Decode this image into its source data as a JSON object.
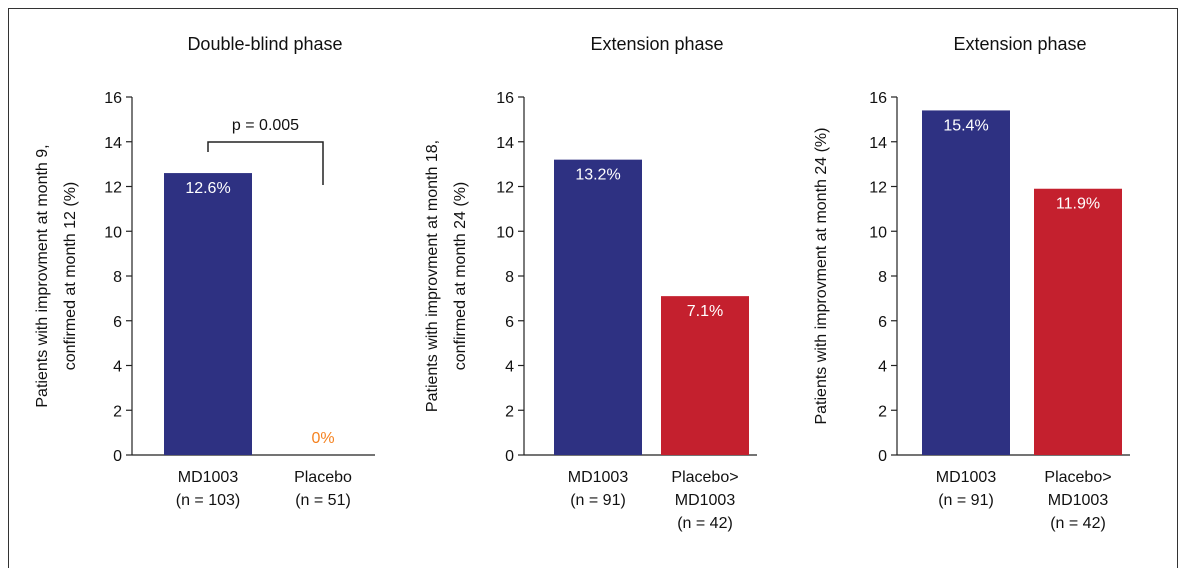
{
  "chart_data": [
    {
      "type": "bar",
      "title": "Double-blind phase",
      "ylabel": [
        "Patients with improvment at month 9,",
        "confirmed at month 12 (%)"
      ],
      "ylim": [
        0,
        16
      ],
      "yticks": [
        0,
        2,
        4,
        6,
        8,
        10,
        12,
        14,
        16
      ],
      "categories": [
        [
          "MD1003",
          "(n = 103)"
        ],
        [
          "Placebo",
          "(n = 51)"
        ]
      ],
      "values": [
        12.6,
        0
      ],
      "value_labels": [
        "12.6%",
        "0%"
      ],
      "colors": [
        "#2e3182",
        "#c4202e"
      ],
      "label_colors": [
        "#ffffff",
        "#f58220"
      ],
      "annotation": {
        "text": "p = 0.005"
      }
    },
    {
      "type": "bar",
      "title": "Extension phase",
      "ylabel": [
        "Patients with improvment at month 18,",
        "confirmed at month 24 (%)"
      ],
      "ylim": [
        0,
        16
      ],
      "yticks": [
        0,
        2,
        4,
        6,
        8,
        10,
        12,
        14,
        16
      ],
      "categories": [
        [
          "MD1003",
          "(n = 91)"
        ],
        [
          "Placebo>",
          "MD1003",
          "(n = 42)"
        ]
      ],
      "values": [
        13.2,
        7.1
      ],
      "value_labels": [
        "13.2%",
        "7.1%"
      ],
      "colors": [
        "#2e3182",
        "#c4202e"
      ],
      "label_colors": [
        "#ffffff",
        "#ffffff"
      ]
    },
    {
      "type": "bar",
      "title": "Extension phase",
      "ylabel": [
        "Patients with improvment at month 24 (%)"
      ],
      "ylim": [
        0,
        16
      ],
      "yticks": [
        0,
        2,
        4,
        6,
        8,
        10,
        12,
        14,
        16
      ],
      "categories": [
        [
          "MD1003",
          "(n = 91)"
        ],
        [
          "Placebo>",
          "MD1003",
          "(n = 42)"
        ]
      ],
      "values": [
        15.4,
        11.9
      ],
      "value_labels": [
        "15.4%",
        "11.9%"
      ],
      "colors": [
        "#2e3182",
        "#c4202e"
      ],
      "label_colors": [
        "#ffffff",
        "#ffffff"
      ]
    }
  ]
}
